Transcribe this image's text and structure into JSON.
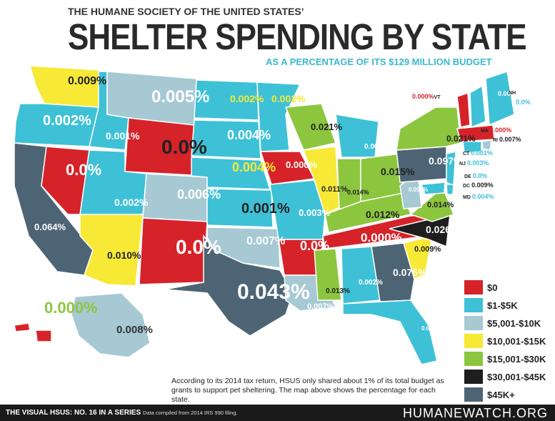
{
  "header": {
    "overline": "THE HUMANE SOCIETY OF THE UNITED STATES’",
    "title": "SHELTER SPENDING BY STATE",
    "subtitle": "AS A PERCENTAGE OF ITS $129 MILLION BUDGET"
  },
  "colors": {
    "zero": "#d6232a",
    "k1_5": "#3ec1d6",
    "k5_10": "#a6c9d4",
    "k10_15": "#f7e935",
    "k15_30": "#8cc63f",
    "k30_45": "#1e1e1e",
    "k45plus": "#4d6474"
  },
  "legend": [
    {
      "key": "zero",
      "label": "$0"
    },
    {
      "key": "k1_5",
      "label": "$1-$5K"
    },
    {
      "key": "k5_10",
      "label": "$5,001-$10K"
    },
    {
      "key": "k10_15",
      "label": "$10,001-$15K"
    },
    {
      "key": "k15_30",
      "label": "$15,001-$30K"
    },
    {
      "key": "k30_45",
      "label": "$30,001-$45K"
    },
    {
      "key": "k45plus",
      "label": "$45K+"
    }
  ],
  "states": {
    "WA": {
      "value": "0.009%",
      "tier": "k10_15"
    },
    "OR": {
      "value": "0.002%",
      "tier": "k1_5"
    },
    "CA": {
      "value": "0.064%",
      "tier": "k45plus"
    },
    "NV": {
      "value": "0.0%",
      "tier": "zero"
    },
    "ID": {
      "value": "0.001%",
      "tier": "k1_5"
    },
    "MT": {
      "value": "0.005%",
      "tier": "k5_10"
    },
    "WY": {
      "value": "0.0%",
      "tier": "zero"
    },
    "UT": {
      "value": "0.002%",
      "tier": "k1_5"
    },
    "AZ": {
      "value": "0.010%",
      "tier": "k10_15"
    },
    "CO": {
      "value": "0.006%",
      "tier": "k5_10"
    },
    "NM": {
      "value": "0.0%",
      "tier": "zero"
    },
    "ND": {
      "value": "0.002%",
      "tier": "k1_5"
    },
    "SD": {
      "value": "0.004%",
      "tier": "k1_5"
    },
    "NE": {
      "value": "0.004%",
      "tier": "k1_5"
    },
    "KS": {
      "value": "0.001%",
      "tier": "k1_5"
    },
    "OK": {
      "value": "0.007%",
      "tier": "k5_10"
    },
    "TX": {
      "value": "0.043%",
      "tier": "k45plus"
    },
    "MN": {
      "value": "0.002%",
      "tier": "k1_5"
    },
    "IA": {
      "value": "0.000%",
      "tier": "zero"
    },
    "MO": {
      "value": "0.003%",
      "tier": "k1_5"
    },
    "AR": {
      "value": "0.0%",
      "tier": "zero"
    },
    "LA": {
      "value": "0.007%",
      "tier": "k5_10"
    },
    "WI": {
      "value": "0.021%",
      "tier": "k15_30"
    },
    "IL": {
      "value": "0.011%",
      "tier": "k10_15"
    },
    "MI": {
      "value": "0.001%",
      "tier": "k1_5"
    },
    "IN": {
      "value": "0.014%",
      "tier": "k15_30"
    },
    "OH": {
      "value": "0.015%",
      "tier": "k15_30"
    },
    "KY": {
      "value": "0.012%",
      "tier": "k15_30"
    },
    "TN": {
      "value": "0.000%",
      "tier": "zero"
    },
    "MS": {
      "value": "0.013%",
      "tier": "k15_30"
    },
    "AL": {
      "value": "0.002%",
      "tier": "k1_5"
    },
    "GA": {
      "value": "0.075%",
      "tier": "k45plus"
    },
    "FL": {
      "value": "0.001%",
      "tier": "k1_5"
    },
    "SC": {
      "value": "0.009%",
      "tier": "k10_15"
    },
    "NC": {
      "value": "0.026%",
      "tier": "k30_45"
    },
    "VA": {
      "value": "0.014%",
      "tier": "k15_30"
    },
    "WV": {
      "value": "0.007%",
      "tier": "k5_10"
    },
    "PA": {
      "value": "0.097%",
      "tier": "k45plus"
    },
    "NY": {
      "value": "0.021%",
      "tier": "k15_30"
    },
    "ME": {
      "value": "0.002%",
      "tier": "k1_5"
    },
    "AK": {
      "value": "0.008%",
      "tier": "k5_10"
    },
    "HI": {
      "value": "0.000%",
      "tier": "zero"
    }
  },
  "northeast": [
    {
      "code": "VT",
      "value": "0.000%",
      "tier": "zero"
    },
    {
      "code": "NH",
      "value": "0.0%",
      "tier": "k1_5"
    },
    {
      "code": "MA",
      "value": "0.000%",
      "tier": "zero"
    },
    {
      "code": "RI",
      "value": "0.007%",
      "tier": "k5_10"
    },
    {
      "code": "CT",
      "value": "0.001%",
      "tier": "k1_5"
    },
    {
      "code": "NJ",
      "value": "0.003%",
      "tier": "k1_5"
    },
    {
      "code": "DE",
      "value": "0.0%",
      "tier": "k1_5"
    },
    {
      "code": "DC",
      "value": "0.009%",
      "tier": "k10_15"
    },
    {
      "code": "MD",
      "value": "0.004%",
      "tier": "k1_5"
    }
  ],
  "note": "According to its 2014 tax return, HSUS only shared about 1% of its total budget as grants to support pet sheltering. The map above shows the percentage for each state.",
  "footer": {
    "series": "THE VISUAL HSUS: NO. 16 IN A SERIES",
    "source": "Data compiled from 2014 IRS 990 filing.",
    "brand": "HUMANEWATCH.ORG"
  }
}
